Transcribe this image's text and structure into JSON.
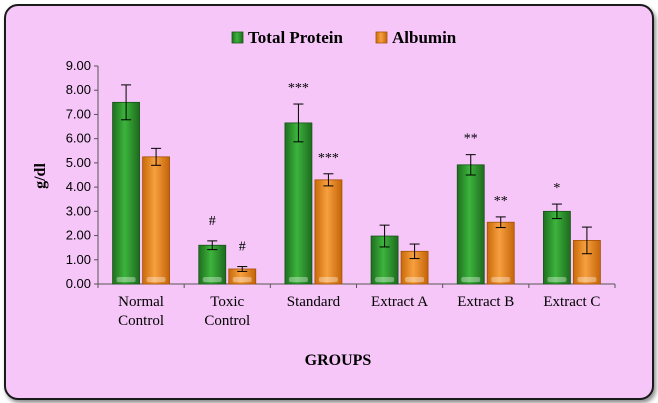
{
  "chart_data": {
    "type": "bar",
    "title": "",
    "xlabel": "GROUPS",
    "ylabel": "g/dl",
    "ylim": [
      0,
      9
    ],
    "yticks": [
      "0.00",
      "1.00",
      "2.00",
      "3.00",
      "4.00",
      "5.00",
      "6.00",
      "7.00",
      "8.00",
      "9.00"
    ],
    "categories": [
      [
        "Normal",
        "Control"
      ],
      [
        "Toxic",
        "Control"
      ],
      [
        "Standard"
      ],
      [
        "Extract A"
      ],
      [
        "Extract B"
      ],
      [
        "Extract C"
      ]
    ],
    "series": [
      {
        "name": "Total Protein",
        "color": "#2e9a2e",
        "values": [
          7.5,
          1.6,
          6.65,
          1.98,
          4.92,
          3.0
        ],
        "errors": [
          0.72,
          0.18,
          0.78,
          0.45,
          0.42,
          0.3
        ],
        "annotations": [
          "",
          "#",
          "***",
          "",
          "**",
          "*"
        ]
      },
      {
        "name": "Albumin",
        "color": "#ef8a1c",
        "values": [
          5.25,
          0.62,
          4.3,
          1.35,
          2.55,
          1.8
        ],
        "errors": [
          0.35,
          0.1,
          0.25,
          0.3,
          0.22,
          0.55
        ],
        "annotations": [
          "",
          "#",
          "***",
          "",
          "**",
          ""
        ]
      }
    ],
    "legend_position": "top-center",
    "grid": false
  }
}
